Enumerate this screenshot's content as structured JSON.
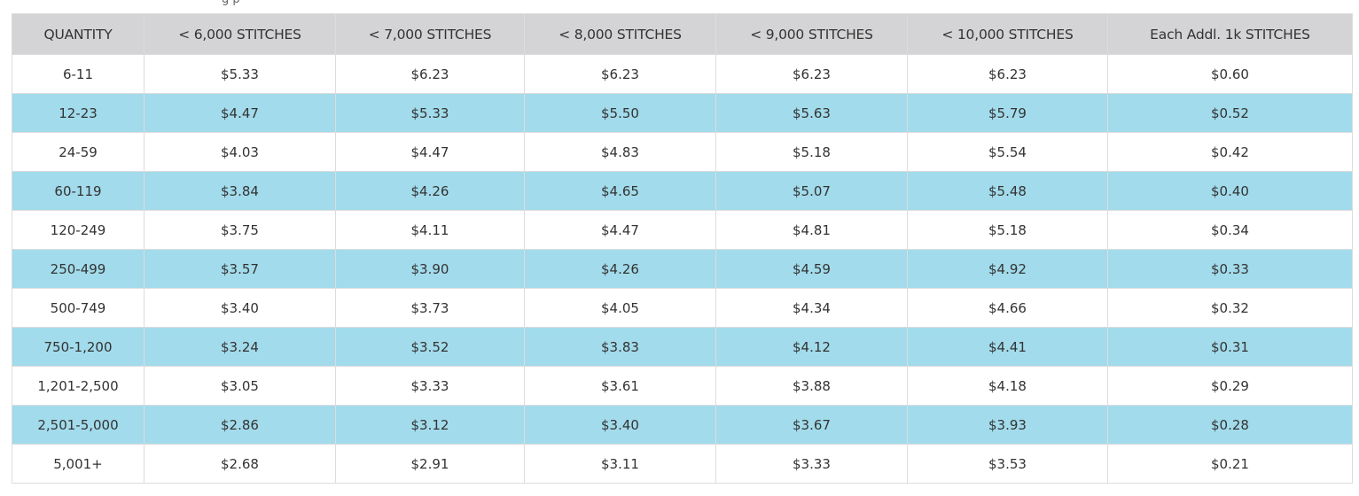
{
  "top_fragment": "g p",
  "table": {
    "headers": [
      "QUANTITY",
      "< 6,000 STITCHES",
      "< 7,000 STITCHES",
      "< 8,000 STITCHES",
      "< 9,000 STITCHES",
      "< 10,000 STITCHES",
      "Each Addl. 1k STITCHES"
    ],
    "rows": [
      [
        "6-11",
        "$5.33",
        "$6.23",
        "$6.23",
        "$6.23",
        "$6.23",
        "$0.60"
      ],
      [
        "12-23",
        "$4.47",
        "$5.33",
        "$5.50",
        "$5.63",
        "$5.79",
        "$0.52"
      ],
      [
        "24-59",
        "$4.03",
        "$4.47",
        "$4.83",
        "$5.18",
        "$5.54",
        "$0.42"
      ],
      [
        "60-119",
        "$3.84",
        "$4.26",
        "$4.65",
        "$5.07",
        "$5.48",
        "$0.40"
      ],
      [
        "120-249",
        "$3.75",
        "$4.11",
        "$4.47",
        "$4.81",
        "$5.18",
        "$0.34"
      ],
      [
        "250-499",
        "$3.57",
        "$3.90",
        "$4.26",
        "$4.59",
        "$4.92",
        "$0.33"
      ],
      [
        "500-749",
        "$3.40",
        "$3.73",
        "$4.05",
        "$4.34",
        "$4.66",
        "$0.32"
      ],
      [
        "750-1,200",
        "$3.24",
        "$3.52",
        "$3.83",
        "$4.12",
        "$4.41",
        "$0.31"
      ],
      [
        "1,201-2,500",
        "$3.05",
        "$3.33",
        "$3.61",
        "$3.88",
        "$4.18",
        "$0.29"
      ],
      [
        "2,501-5,000",
        "$2.86",
        "$3.12",
        "$3.40",
        "$3.67",
        "$3.93",
        "$0.28"
      ],
      [
        "5,001+",
        "$2.68",
        "$2.91",
        "$3.11",
        "$3.33",
        "$3.53",
        "$0.21"
      ]
    ]
  },
  "colors": {
    "header_bg": "#d4d4d6",
    "stripe_bg": "#a2dbeb",
    "row_bg": "#ffffff",
    "border": "#dcdcdc",
    "text": "#333333"
  }
}
